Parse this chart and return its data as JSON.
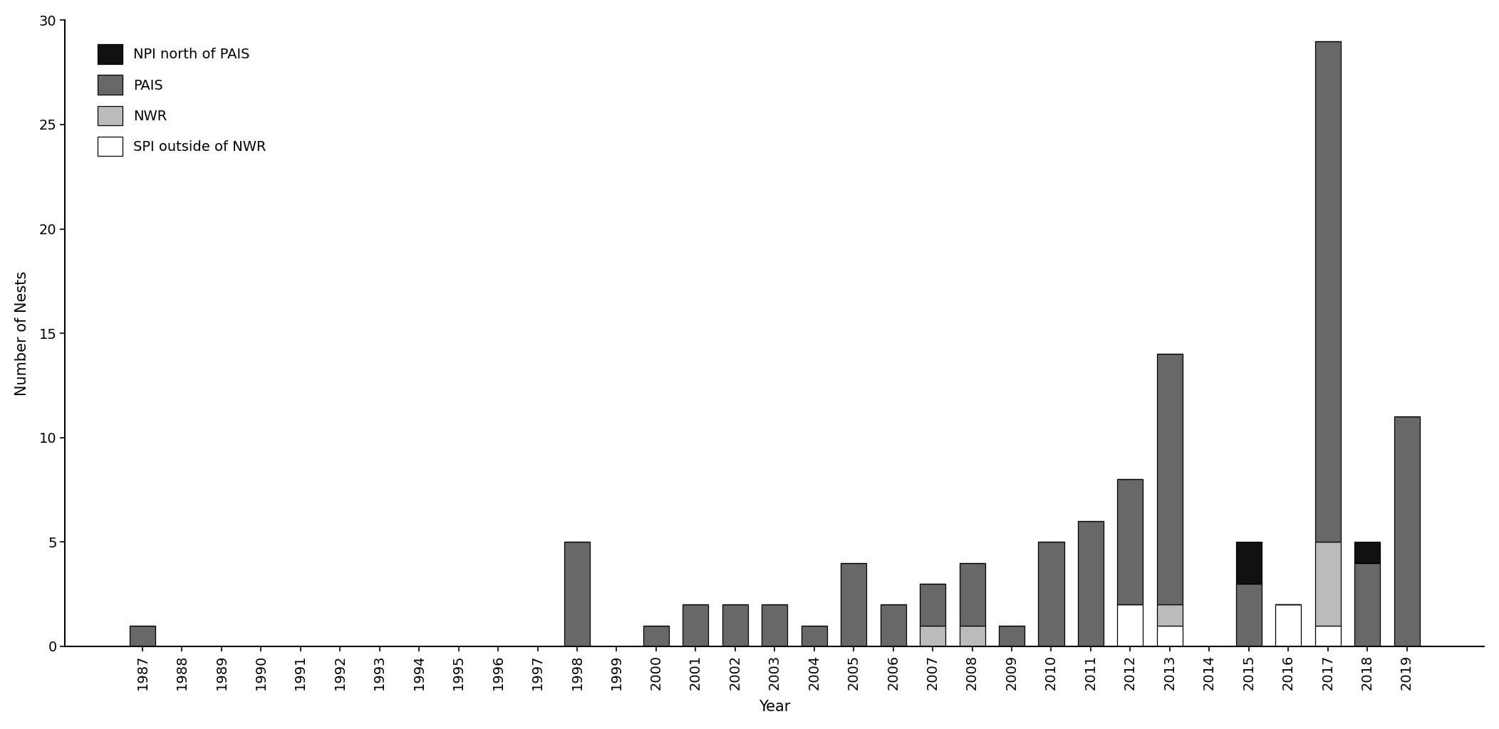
{
  "years": [
    1987,
    1988,
    1989,
    1990,
    1991,
    1992,
    1993,
    1994,
    1995,
    1996,
    1997,
    1998,
    1999,
    2000,
    2001,
    2002,
    2003,
    2004,
    2005,
    2006,
    2007,
    2008,
    2009,
    2010,
    2011,
    2012,
    2013,
    2014,
    2015,
    2016,
    2017,
    2018,
    2019
  ],
  "SPI_outside_NWR": [
    0,
    0,
    0,
    0,
    0,
    0,
    0,
    0,
    0,
    0,
    0,
    0,
    0,
    0,
    0,
    0,
    0,
    0,
    0,
    0,
    0,
    0,
    0,
    0,
    0,
    2,
    1,
    0,
    0,
    2,
    1,
    0,
    0
  ],
  "NWR": [
    0,
    0,
    0,
    0,
    0,
    0,
    0,
    0,
    0,
    0,
    0,
    0,
    0,
    0,
    0,
    0,
    0,
    0,
    0,
    0,
    1,
    1,
    0,
    0,
    0,
    0,
    1,
    0,
    0,
    0,
    4,
    0,
    0
  ],
  "PAIS": [
    1,
    0,
    0,
    0,
    0,
    0,
    0,
    0,
    0,
    0,
    0,
    5,
    0,
    1,
    2,
    2,
    2,
    1,
    4,
    2,
    2,
    3,
    1,
    5,
    6,
    6,
    12,
    0,
    3,
    0,
    24,
    4,
    11
  ],
  "NPI_north_PAIS": [
    0,
    0,
    0,
    0,
    0,
    0,
    0,
    0,
    0,
    0,
    0,
    0,
    0,
    0,
    0,
    0,
    0,
    0,
    0,
    0,
    0,
    0,
    0,
    0,
    0,
    0,
    0,
    0,
    2,
    0,
    0,
    1,
    0
  ],
  "color_NPI": "#111111",
  "color_PAIS": "#686868",
  "color_NWR": "#bbbbbb",
  "color_SPI": "#ffffff",
  "ylabel": "Number of Nests",
  "xlabel": "Year",
  "ylim": [
    0,
    30
  ],
  "yticks": [
    0,
    5,
    10,
    15,
    20,
    25,
    30
  ],
  "legend_labels": [
    "NPI north of PAIS",
    "PAIS",
    "NWR",
    "SPI outside of NWR"
  ],
  "title": ""
}
